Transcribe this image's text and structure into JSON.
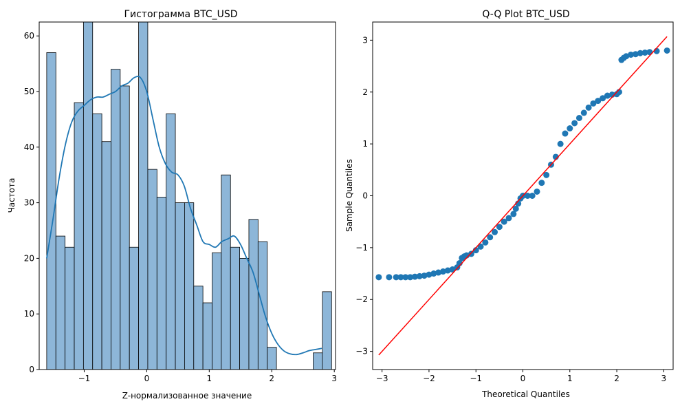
{
  "chart_data": [
    {
      "type": "bar",
      "title": "Гистограмма BTC_USD",
      "xlabel": "Z-нормализованное значение",
      "ylabel": "Частота",
      "xlim": [
        -1.72,
        3.02
      ],
      "ylim": [
        0,
        62.5
      ],
      "xticks": [
        -1,
        0,
        1,
        2,
        3
      ],
      "yticks": [
        0,
        10,
        20,
        30,
        40,
        50,
        60
      ],
      "bins": {
        "start": -1.6,
        "width": 0.147,
        "counts": [
          57,
          24,
          22,
          48,
          66,
          46,
          41,
          54,
          51,
          22,
          66,
          36,
          31,
          46,
          30,
          30,
          15,
          12,
          21,
          35,
          22,
          20,
          27,
          23,
          4,
          0,
          0,
          0,
          0,
          3,
          14
        ]
      },
      "bar_color": "#8db6d8",
      "bar_edge_color": "#000000",
      "kde": {
        "color": "#1f77b4",
        "x": [
          -1.6,
          -1.5,
          -1.4,
          -1.3,
          -1.2,
          -1.1,
          -1.0,
          -0.9,
          -0.8,
          -0.7,
          -0.6,
          -0.5,
          -0.4,
          -0.3,
          -0.2,
          -0.1,
          0.0,
          0.1,
          0.2,
          0.3,
          0.4,
          0.5,
          0.6,
          0.7,
          0.8,
          0.9,
          1.0,
          1.1,
          1.2,
          1.3,
          1.4,
          1.5,
          1.6,
          1.7,
          1.8,
          1.9,
          2.0,
          2.1,
          2.2,
          2.3,
          2.4,
          2.5,
          2.6,
          2.7,
          2.8
        ],
        "y": [
          20,
          27,
          34.5,
          40.5,
          44.5,
          46.5,
          47.5,
          48.5,
          49,
          49,
          49.5,
          50,
          51,
          51.5,
          52.5,
          52.5,
          50,
          45,
          40,
          37,
          35.5,
          35,
          33,
          29,
          26,
          23,
          22.5,
          22,
          23,
          23.5,
          24,
          22.5,
          20,
          17.5,
          13.5,
          9.5,
          6.5,
          4.5,
          3.3,
          2.8,
          2.7,
          3.0,
          3.4,
          3.6,
          3.8
        ]
      }
    },
    {
      "type": "scatter",
      "title": "Q-Q Plot BTC_USD",
      "xlabel": "Theoretical Quantiles",
      "ylabel": "Sample Quantiles",
      "xlim": [
        -3.2,
        3.2
      ],
      "ylim": [
        -3.35,
        3.35
      ],
      "xticks": [
        -3,
        -2,
        -1,
        0,
        1,
        2,
        3
      ],
      "yticks": [
        -3,
        -2,
        -1,
        0,
        1,
        2,
        3
      ],
      "point_color": "#1f77b4",
      "line_color": "#ff0000",
      "reference_line": [
        [
          -3.07,
          -3.07
        ],
        [
          3.07,
          3.07
        ]
      ],
      "points": [
        [
          -3.07,
          -1.57
        ],
        [
          -2.85,
          -1.57
        ],
        [
          -2.7,
          -1.57
        ],
        [
          -2.6,
          -1.57
        ],
        [
          -2.5,
          -1.57
        ],
        [
          -2.4,
          -1.57
        ],
        [
          -2.3,
          -1.56
        ],
        [
          -2.2,
          -1.55
        ],
        [
          -2.1,
          -1.54
        ],
        [
          -2.0,
          -1.52
        ],
        [
          -1.9,
          -1.5
        ],
        [
          -1.8,
          -1.48
        ],
        [
          -1.7,
          -1.46
        ],
        [
          -1.6,
          -1.44
        ],
        [
          -1.5,
          -1.42
        ],
        [
          -1.4,
          -1.38
        ],
        [
          -1.35,
          -1.3
        ],
        [
          -1.3,
          -1.2
        ],
        [
          -1.25,
          -1.17
        ],
        [
          -1.2,
          -1.15
        ],
        [
          -1.1,
          -1.12
        ],
        [
          -1.0,
          -1.05
        ],
        [
          -0.9,
          -0.98
        ],
        [
          -0.8,
          -0.9
        ],
        [
          -0.7,
          -0.8
        ],
        [
          -0.6,
          -0.7
        ],
        [
          -0.5,
          -0.6
        ],
        [
          -0.4,
          -0.5
        ],
        [
          -0.3,
          -0.43
        ],
        [
          -0.2,
          -0.35
        ],
        [
          -0.15,
          -0.25
        ],
        [
          -0.1,
          -0.15
        ],
        [
          -0.05,
          -0.05
        ],
        [
          0.0,
          0.0
        ],
        [
          0.1,
          0.0
        ],
        [
          0.2,
          0.0
        ],
        [
          0.3,
          0.08
        ],
        [
          0.4,
          0.25
        ],
        [
          0.5,
          0.4
        ],
        [
          0.6,
          0.6
        ],
        [
          0.7,
          0.75
        ],
        [
          0.8,
          1.0
        ],
        [
          0.9,
          1.2
        ],
        [
          1.0,
          1.3
        ],
        [
          1.1,
          1.4
        ],
        [
          1.2,
          1.5
        ],
        [
          1.3,
          1.6
        ],
        [
          1.4,
          1.7
        ],
        [
          1.5,
          1.78
        ],
        [
          1.6,
          1.83
        ],
        [
          1.7,
          1.88
        ],
        [
          1.8,
          1.93
        ],
        [
          1.9,
          1.95
        ],
        [
          2.0,
          1.96
        ],
        [
          2.05,
          2.0
        ],
        [
          2.1,
          2.62
        ],
        [
          2.15,
          2.66
        ],
        [
          2.2,
          2.69
        ],
        [
          2.3,
          2.72
        ],
        [
          2.4,
          2.73
        ],
        [
          2.5,
          2.75
        ],
        [
          2.6,
          2.76
        ],
        [
          2.7,
          2.77
        ],
        [
          2.85,
          2.79
        ],
        [
          3.07,
          2.8
        ]
      ]
    }
  ]
}
